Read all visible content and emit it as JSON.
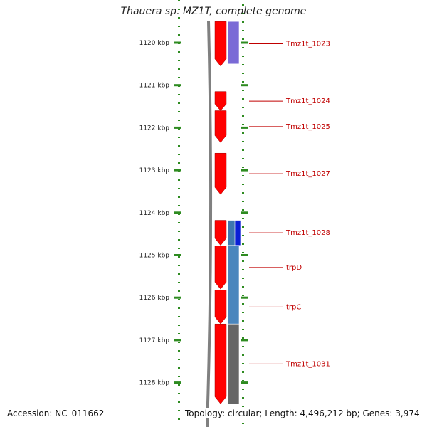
{
  "header": {
    "title": "Thauera sp. MZ1T, complete genome"
  },
  "footer": {
    "accession": "Accession: NC_011662",
    "topology": "Topology: circular; Length: 4,496,212 bp; Genes: 3,974"
  },
  "ticks": [
    {
      "label": "1120 kbp",
      "kbp": 1120
    },
    {
      "label": "1121 kbp",
      "kbp": 1121
    },
    {
      "label": "1122 kbp",
      "kbp": 1122
    },
    {
      "label": "1123 kbp",
      "kbp": 1123
    },
    {
      "label": "1124 kbp",
      "kbp": 1124
    },
    {
      "label": "1125 kbp",
      "kbp": 1125
    },
    {
      "label": "1126 kbp",
      "kbp": 1126
    },
    {
      "label": "1127 kbp",
      "kbp": 1127
    },
    {
      "label": "1128 kbp",
      "kbp": 1128
    }
  ],
  "genes": [
    {
      "label": "Tmz1t_1023",
      "start_kbp": 1119.5,
      "end_kbp": 1120.55,
      "track": "outer",
      "color": "#ff0000"
    },
    {
      "label": "Tmz1t_1024",
      "start_kbp": 1121.15,
      "end_kbp": 1121.6,
      "track": "outer",
      "color": "#ff0000"
    },
    {
      "label": "Tmz1t_1025",
      "start_kbp": 1121.6,
      "end_kbp": 1122.35,
      "track": "outer",
      "color": "#ff0000"
    },
    {
      "label": "Tmz1t_1027",
      "start_kbp": 1122.6,
      "end_kbp": 1123.57,
      "track": "outer",
      "color": "#ff0000"
    },
    {
      "label": "Tmz1t_1028",
      "start_kbp": 1124.18,
      "end_kbp": 1124.77,
      "track": "outer",
      "color": "#ff0000"
    },
    {
      "label": "trpD",
      "start_kbp": 1124.78,
      "end_kbp": 1125.8,
      "track": "outer",
      "color": "#ff0000"
    },
    {
      "label": "trpC",
      "start_kbp": 1125.82,
      "end_kbp": 1126.62,
      "track": "outer",
      "color": "#ff0000"
    },
    {
      "label": "Tmz1t_1031",
      "start_kbp": 1126.62,
      "end_kbp": 1128.5,
      "track": "outer",
      "color": "#ff0000"
    }
  ],
  "blocks": [
    {
      "name": "purple-block",
      "start_kbp": 1119.5,
      "end_kbp": 1120.5,
      "track": "inner",
      "color": "#7a6ad6"
    },
    {
      "name": "steelblue-block-1",
      "start_kbp": 1124.18,
      "end_kbp": 1124.77,
      "track": "inner",
      "color": "#3d77b0"
    },
    {
      "name": "blue-block",
      "start_kbp": 1124.18,
      "end_kbp": 1124.77,
      "track": "inner2",
      "color": "#0a1fd6"
    },
    {
      "name": "steelblue-block-2",
      "start_kbp": 1124.78,
      "end_kbp": 1126.62,
      "track": "inner",
      "color": "#4a86bd"
    },
    {
      "name": "gray-block",
      "start_kbp": 1126.62,
      "end_kbp": 1128.5,
      "track": "inner",
      "color": "#666666"
    }
  ],
  "colors": {
    "tick_green": "#2e8b20",
    "label_red": "#c00000",
    "backbone_gray": "#808080"
  }
}
